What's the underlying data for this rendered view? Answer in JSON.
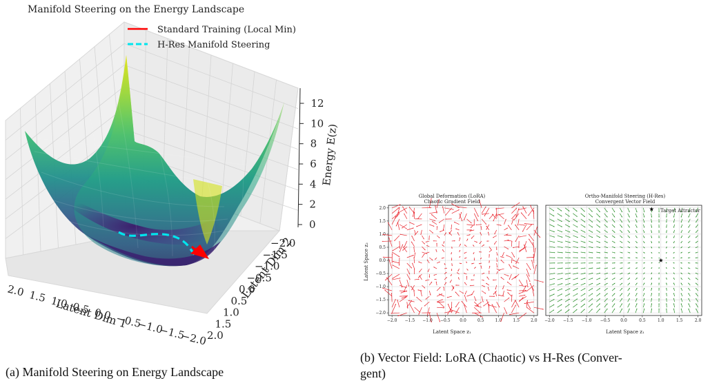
{
  "figure": {
    "caption_a": "(a) Manifold Steering on Energy Landscape",
    "caption_b_line1": "(b) Vector Field: LoRA (Chaotic) vs H-Res (Conver-",
    "caption_b_line2": "gent)"
  },
  "colors": {
    "standard": "#ff0000",
    "steering": "#00e5ee",
    "quiver_left": "#e8222a",
    "quiver_right": "#228b22"
  },
  "chart_data": [
    {
      "type": "surface",
      "title": "Manifold Steering on the Energy Landscape",
      "xlabel": "Latent Dim 1",
      "ylabel": "Latent Dim 2",
      "zlabel": "Energy E(z)",
      "x_ticks": [
        "2.0",
        "1.5",
        "1.0",
        "0.5",
        "0.0",
        "−0.5",
        "−1.0",
        "−1.5",
        "−2.0"
      ],
      "y_ticks": [
        "−2.0",
        "−1.5",
        "−1.0",
        "−0.5",
        "0.0",
        "0.5",
        "1.0",
        "1.5",
        "2.0"
      ],
      "z_ticks": [
        "0",
        "2",
        "4",
        "6",
        "8",
        "10",
        "12"
      ],
      "xlim": [
        -2,
        2
      ],
      "ylim": [
        -2,
        2
      ],
      "zlim": [
        0,
        12.5
      ],
      "legend": [
        {
          "label": "Standard Training (Local Min)",
          "style": "solid",
          "color": "#ff0000"
        },
        {
          "label": "H-Res Manifold Steering",
          "style": "dashed",
          "color": "#00e5ee"
        }
      ],
      "legend_position": "top-right",
      "colormap": "viridis"
    },
    {
      "type": "quiver",
      "title_line1": "Global Deformation (LoRA)",
      "title_line2": "Chaotic Gradient Field",
      "xlabel": "Latent Space z₁",
      "ylabel": "Latent Space z₂",
      "x_ticks": [
        "−2.0",
        "−1.5",
        "−1.0",
        "−0.5",
        "0.0",
        "0.5",
        "1.0",
        "1.5",
        "2.0"
      ],
      "y_ticks": [
        "2.0",
        "1.5",
        "1.0",
        "0.5",
        "0.0",
        "−0.5",
        "−1.0",
        "−1.5",
        "−2.0"
      ],
      "xlim": [
        -2.1,
        2.1
      ],
      "ylim": [
        -2.1,
        2.1
      ],
      "grid": true,
      "color": "#e8222a"
    },
    {
      "type": "quiver",
      "title_line1": "Ortho-Manifold Steering (H-Res)",
      "title_line2": "Convergent Vector Field",
      "xlabel": "Latent Space z₁",
      "x_ticks": [
        "−2.0",
        "−1.5",
        "−1.0",
        "−0.5",
        "0.0",
        "0.5",
        "1.0",
        "1.5",
        "2.0"
      ],
      "xlim": [
        -2.1,
        2.1
      ],
      "ylim": [
        -2.1,
        2.1
      ],
      "grid": true,
      "color": "#228b22",
      "attractor": {
        "x": 1.0,
        "y": 0.0,
        "label": "Target Attractor"
      }
    }
  ]
}
